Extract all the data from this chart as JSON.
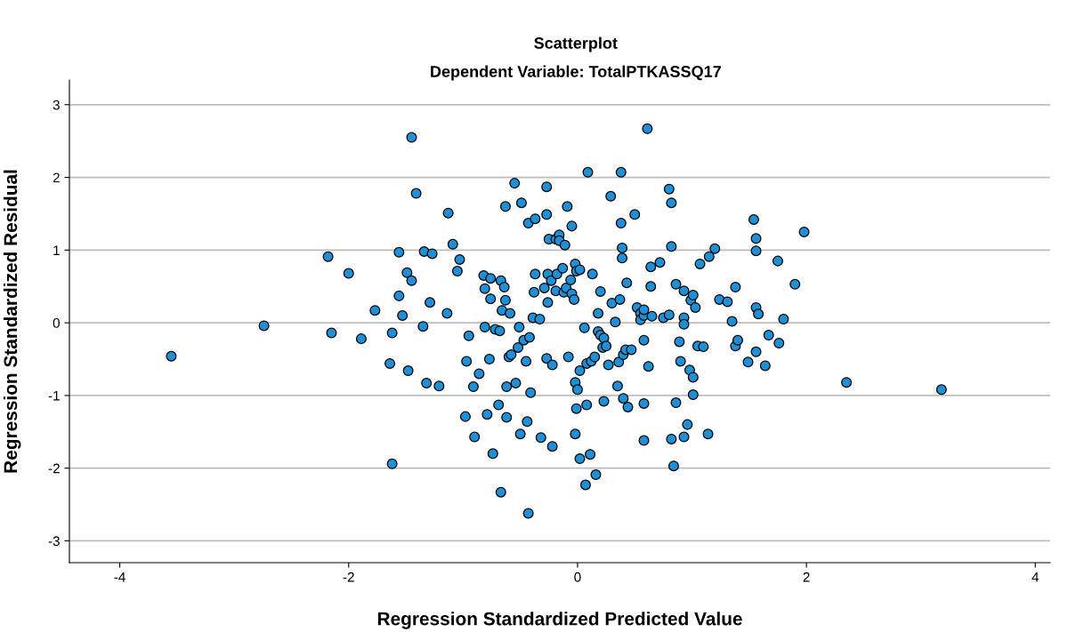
{
  "chart_data": {
    "type": "scatter",
    "title": "Scatterplot",
    "subtitle": "Dependent Variable: TotalPTKASSQ17",
    "xlabel": "Regression Standardized Predicted Value",
    "ylabel": "Regression Standardized Residual",
    "xlim": [
      -4.44,
      4.13
    ],
    "ylim": [
      -3.3,
      3.34
    ],
    "xticks": [
      -4,
      -2,
      0,
      2,
      4
    ],
    "yticks": [
      -3,
      -2,
      -1,
      0,
      1,
      2,
      3
    ],
    "grid": "y",
    "marker": "circle",
    "series": [
      {
        "color": "#1f8fd6",
        "x": [
          -3.55,
          -2.74,
          -2.18,
          -2.15,
          -2.0,
          -1.89,
          -1.77,
          -1.45,
          -1.62,
          -1.64,
          -1.62,
          -1.56,
          -1.56,
          -1.53,
          -1.49,
          -1.48,
          -1.45,
          -1.41,
          -1.35,
          -1.34,
          -1.32,
          -1.29,
          -1.27,
          -1.21,
          -1.14,
          -1.13,
          -1.09,
          -1.05,
          -1.03,
          -0.97,
          -0.98,
          -0.95,
          -0.91,
          -0.9,
          -0.86,
          -0.82,
          -0.81,
          -0.81,
          -0.79,
          -0.77,
          -0.76,
          -0.76,
          -0.74,
          -0.72,
          -0.69,
          -0.68,
          -0.67,
          -0.67,
          -0.66,
          -0.64,
          -0.63,
          -0.63,
          -0.62,
          -0.62,
          -0.6,
          -0.59,
          -0.58,
          -0.55,
          -0.54,
          -0.52,
          -0.51,
          -0.5,
          -0.49,
          -0.47,
          -0.45,
          -0.44,
          -0.43,
          -0.43,
          -0.42,
          -0.41,
          -0.39,
          -0.38,
          -0.37,
          -0.37,
          -0.33,
          -0.32,
          -0.29,
          -0.27,
          -0.27,
          -0.27,
          -0.26,
          -0.26,
          -0.25,
          -0.23,
          -0.22,
          -0.22,
          -0.19,
          -0.19,
          -0.18,
          -0.16,
          -0.16,
          -0.13,
          -0.12,
          -0.11,
          -0.1,
          -0.09,
          -0.08,
          -0.06,
          -0.05,
          -0.05,
          -0.03,
          -0.02,
          -0.02,
          -0.02,
          -0.01,
          -0.01,
          0.0,
          0.02,
          0.02,
          0.02,
          0.06,
          0.07,
          0.08,
          0.08,
          0.09,
          0.11,
          0.12,
          0.13,
          0.15,
          0.16,
          0.18,
          0.18,
          0.2,
          0.2,
          0.22,
          0.23,
          0.23,
          0.25,
          0.27,
          0.29,
          0.3,
          0.33,
          0.35,
          0.36,
          0.37,
          0.38,
          0.38,
          0.4,
          0.39,
          0.39,
          0.4,
          0.42,
          0.43,
          0.44,
          0.47,
          0.5,
          0.52,
          0.55,
          0.55,
          0.58,
          0.58,
          0.58,
          0.58,
          0.58,
          0.61,
          0.62,
          0.64,
          0.64,
          0.65,
          0.72,
          0.75,
          0.8,
          0.8,
          0.82,
          0.82,
          0.82,
          0.84,
          0.86,
          0.86,
          0.89,
          0.9,
          0.93,
          0.93,
          0.93,
          0.93,
          0.96,
          0.98,
          0.99,
          1.01,
          1.01,
          1.01,
          1.03,
          1.05,
          1.07,
          1.1,
          1.14,
          1.15,
          1.2,
          1.24,
          1.31,
          1.35,
          1.38,
          1.38,
          1.4,
          1.49,
          1.54,
          1.56,
          1.56,
          1.56,
          1.56,
          1.58,
          1.64,
          1.67,
          1.75,
          1.76,
          1.8,
          1.9,
          1.98,
          2.35,
          3.18
        ],
        "values": [
          -0.46,
          -0.04,
          0.91,
          -0.14,
          0.68,
          -0.22,
          0.17,
          2.55,
          -0.14,
          -0.56,
          -1.94,
          0.97,
          0.37,
          0.1,
          0.69,
          -0.66,
          0.58,
          1.78,
          -0.05,
          0.98,
          -0.83,
          0.28,
          0.95,
          -0.87,
          0.13,
          1.51,
          1.08,
          0.71,
          0.87,
          -0.53,
          -1.29,
          -0.18,
          -0.88,
          -1.57,
          -0.7,
          0.65,
          0.47,
          -0.06,
          -1.26,
          -0.5,
          0.61,
          0.33,
          -1.8,
          -0.09,
          -1.13,
          -0.11,
          0.58,
          -2.33,
          0.17,
          0.49,
          1.6,
          0.31,
          -0.88,
          -1.3,
          -0.47,
          0.13,
          -0.44,
          1.92,
          -0.83,
          -0.34,
          -0.06,
          -1.53,
          1.65,
          -0.24,
          -0.53,
          -1.36,
          1.37,
          -2.62,
          -0.2,
          -0.96,
          0.07,
          0.42,
          1.43,
          0.67,
          0.05,
          -1.58,
          0.48,
          1.87,
          1.49,
          -0.49,
          0.67,
          0.28,
          1.15,
          0.58,
          -1.7,
          -0.58,
          0.44,
          1.15,
          0.67,
          1.21,
          1.13,
          0.75,
          0.42,
          1.07,
          0.48,
          1.6,
          -0.47,
          0.59,
          0.4,
          1.33,
          0.32,
          0.81,
          -1.53,
          -0.82,
          0.71,
          -1.18,
          -0.92,
          0.73,
          -0.66,
          -1.87,
          -0.07,
          -2.23,
          -1.13,
          -0.56,
          2.07,
          -1.81,
          -0.53,
          0.67,
          -0.47,
          -2.09,
          0.13,
          -0.12,
          0.43,
          -0.17,
          -0.34,
          -1.08,
          -0.21,
          -0.32,
          -0.58,
          1.74,
          0.27,
          0.01,
          -0.87,
          -0.54,
          0.32,
          1.37,
          2.07,
          -1.04,
          1.03,
          0.89,
          -0.44,
          -0.37,
          0.55,
          -1.16,
          -0.37,
          1.49,
          0.21,
          0.13,
          0.04,
          -1.11,
          -1.62,
          -0.24,
          0.1,
          0.18,
          2.67,
          -0.6,
          0.5,
          0.77,
          0.09,
          0.83,
          0.07,
          1.84,
          0.11,
          1.65,
          1.05,
          -1.6,
          -1.97,
          0.53,
          -1.1,
          -0.26,
          -0.53,
          -1.57,
          0.44,
          0.07,
          -0.02,
          -1.4,
          -0.65,
          0.31,
          0.38,
          -0.75,
          -0.99,
          0.21,
          -0.32,
          0.81,
          -0.33,
          -1.53,
          0.91,
          1.02,
          0.32,
          0.29,
          0.02,
          -0.32,
          0.49,
          -0.24,
          -0.54,
          1.42,
          0.99,
          1.16,
          0.21,
          -0.4,
          0.12,
          -0.59,
          -0.17,
          0.85,
          -0.28,
          0.05,
          0.53,
          1.25,
          -0.82,
          -0.92
        ]
      }
    ]
  }
}
